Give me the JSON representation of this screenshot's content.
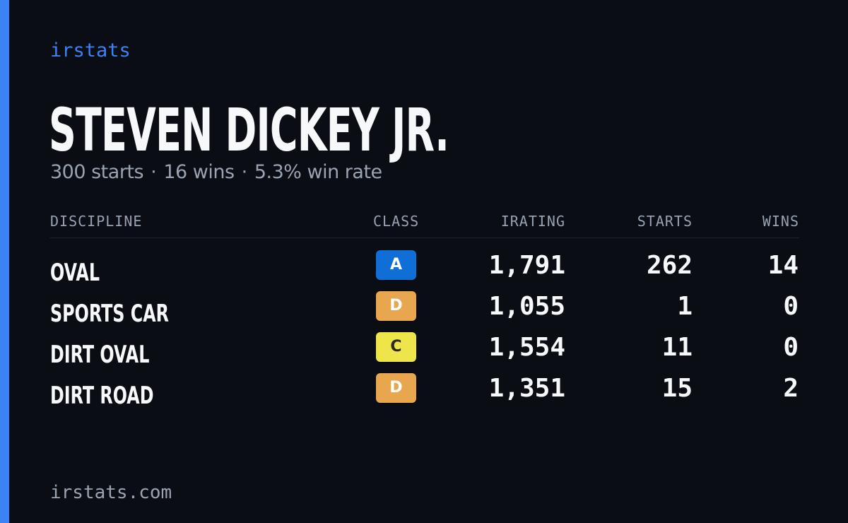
{
  "brand": "irstats",
  "driver": {
    "name": "STEVEN DICKEY JR.",
    "starts": "300 starts",
    "wins": "16 wins",
    "win_rate": "5.3% win rate",
    "separator": "·"
  },
  "table": {
    "headers": {
      "discipline": "DISCIPLINE",
      "class": "CLASS",
      "irating": "IRATING",
      "starts": "STARTS",
      "wins": "WINS"
    },
    "rows": [
      {
        "discipline": "OVAL",
        "class": "A",
        "class_color": "#0f6fd6",
        "class_text_color": "#ffffff",
        "irating": "1,791",
        "starts": "262",
        "wins": "14"
      },
      {
        "discipline": "SPORTS CAR",
        "class": "D",
        "class_color": "#e8a64e",
        "class_text_color": "#ffffff",
        "irating": "1,055",
        "starts": "1",
        "wins": "0"
      },
      {
        "discipline": "DIRT OVAL",
        "class": "C",
        "class_color": "#ede54a",
        "class_text_color": "#2a2a22",
        "irating": "1,554",
        "starts": "11",
        "wins": "0"
      },
      {
        "discipline": "DIRT ROAD",
        "class": "D",
        "class_color": "#e8a64e",
        "class_text_color": "#ffffff",
        "irating": "1,351",
        "starts": "15",
        "wins": "2"
      }
    ]
  },
  "footer": "irstats.com",
  "colors": {
    "accent": "#3b82f6",
    "background": "#0a0d14",
    "muted_text": "#9aa3b2"
  }
}
